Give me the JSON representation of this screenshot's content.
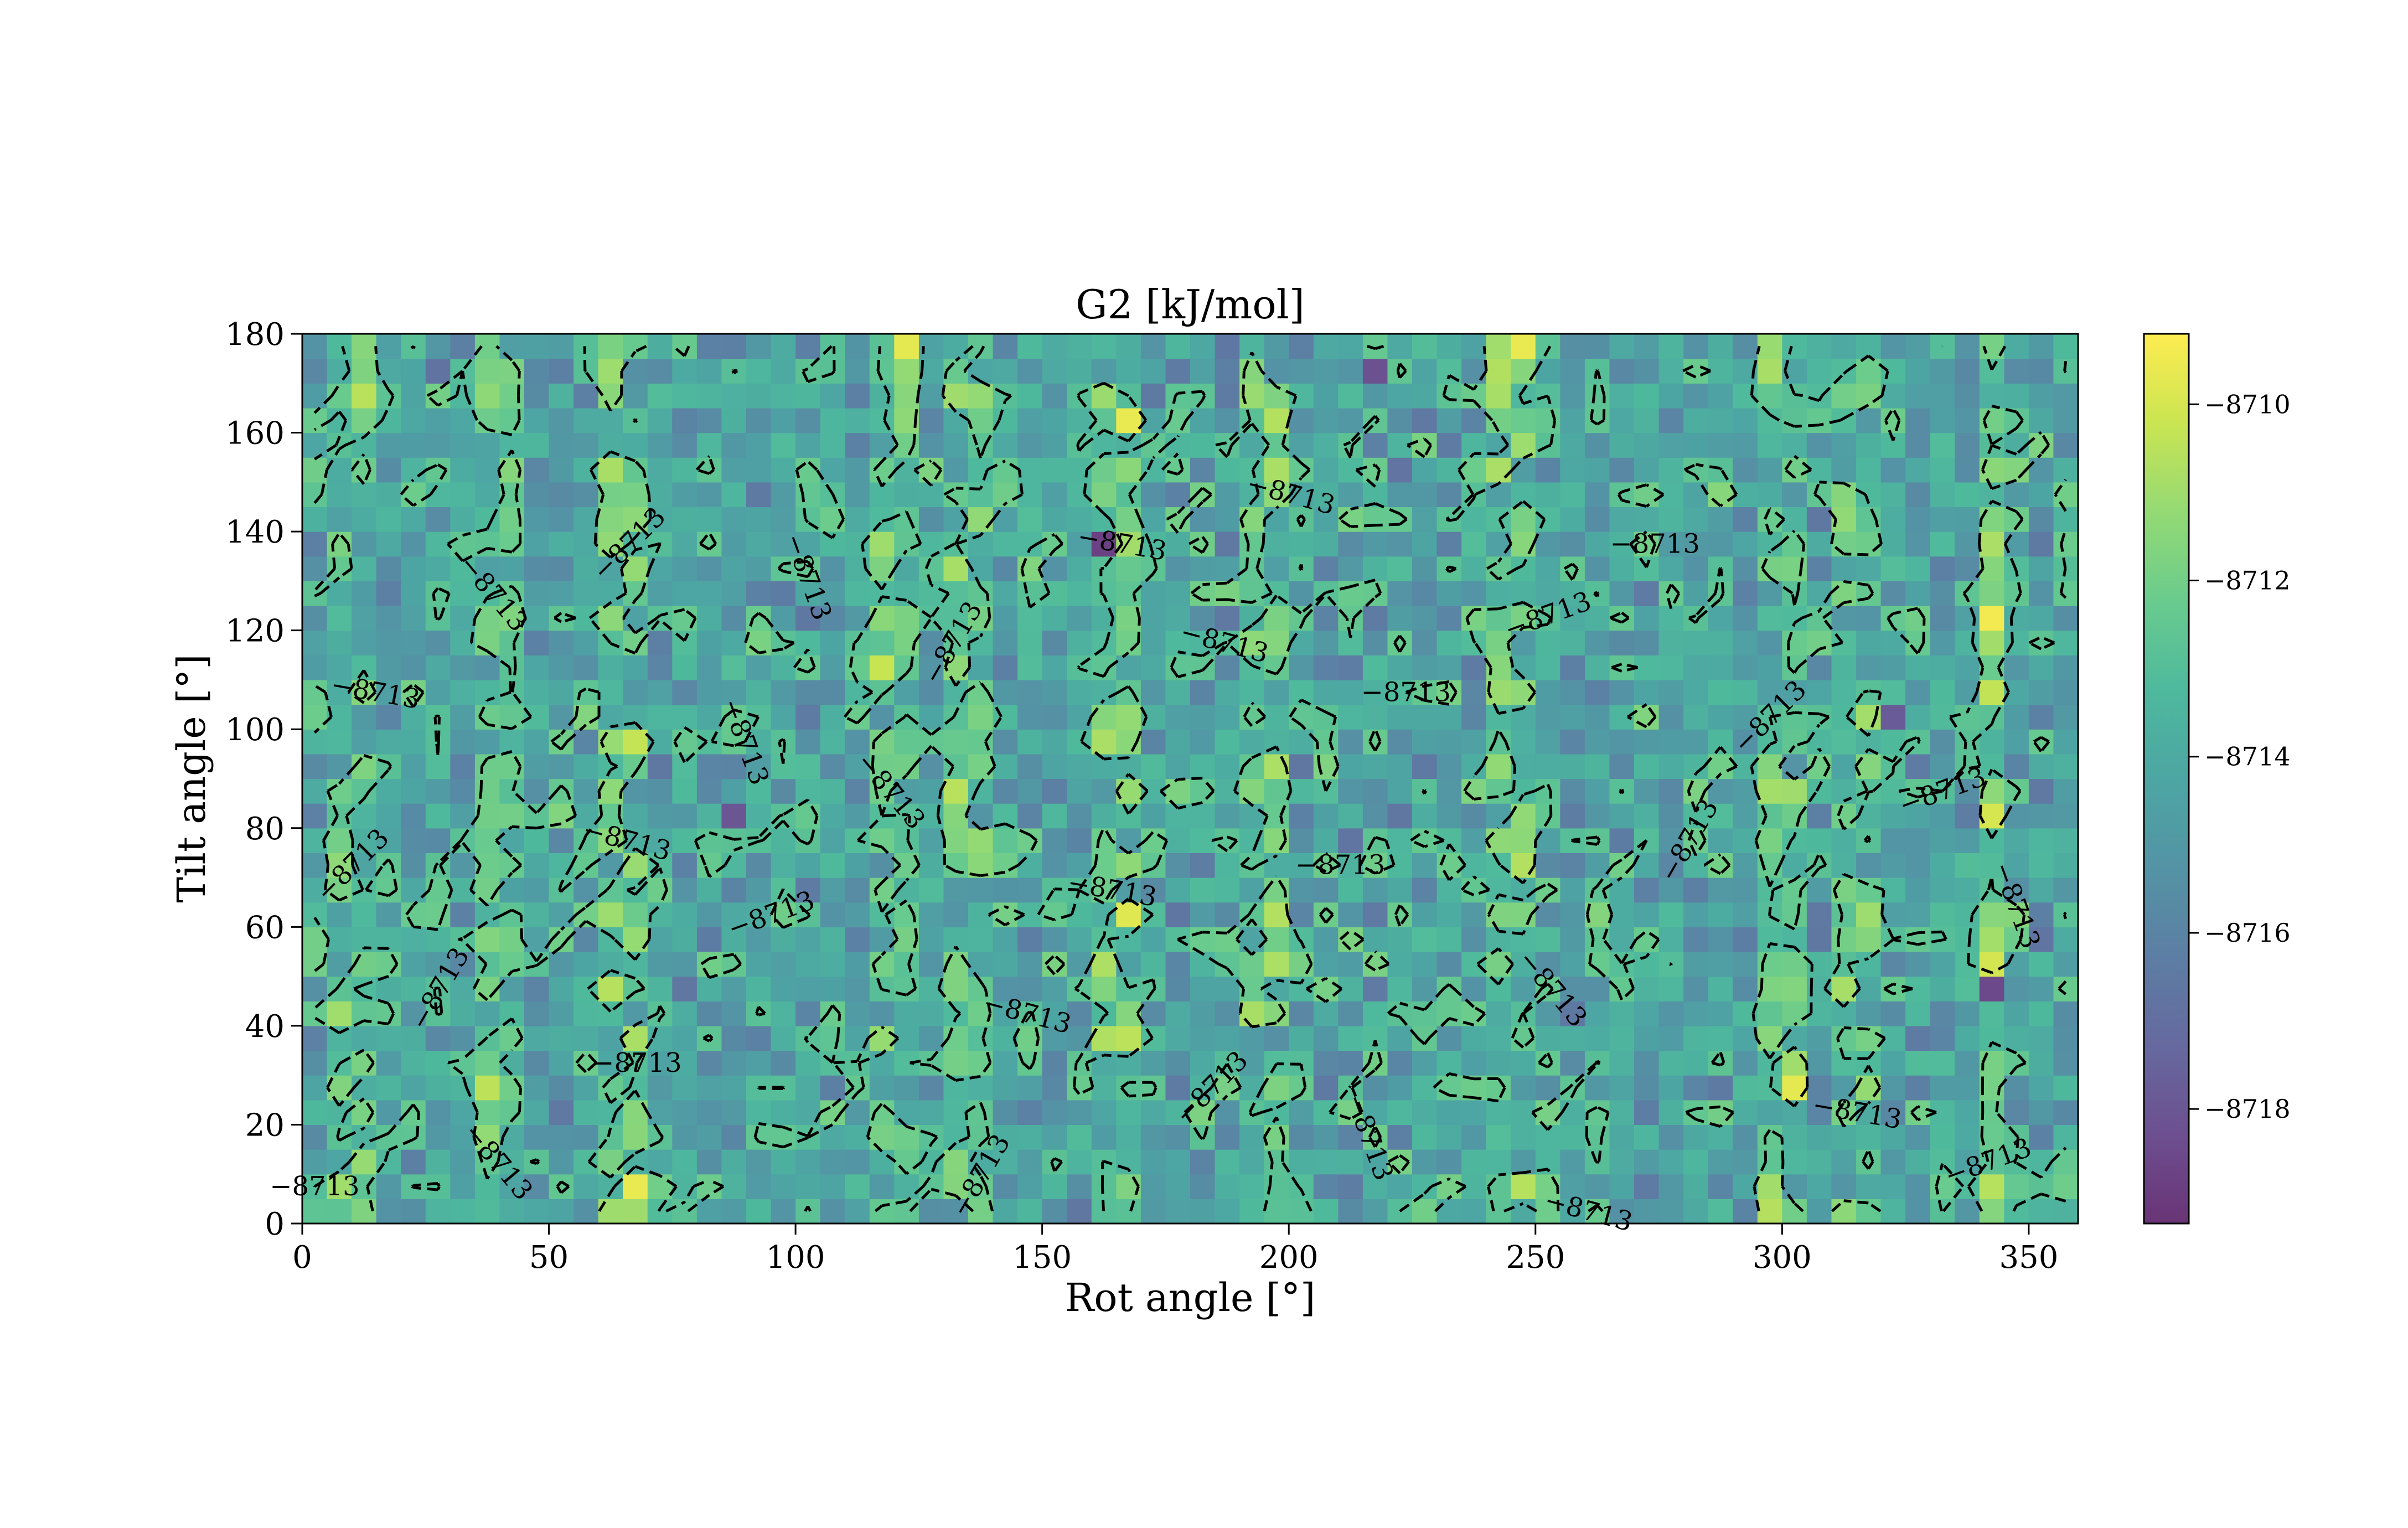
{
  "chart_data": {
    "type": "heatmap",
    "title": "G2 [kJ/mol]",
    "xlabel": "Rot angle [°]",
    "ylabel": "Tilt angle [°]",
    "xlim": [
      0,
      360
    ],
    "ylim": [
      0,
      180
    ],
    "xticks": [
      "0",
      "50",
      "100",
      "150",
      "200",
      "250",
      "300",
      "350"
    ],
    "yticks": [
      "0",
      "20",
      "40",
      "60",
      "80",
      "100",
      "120",
      "140",
      "160",
      "180"
    ],
    "grid_step_deg": 5,
    "colormap": "viridis",
    "colormap_alpha": 0.8,
    "value_range": [
      -8719.3,
      -8709.2
    ],
    "colorbar_ticks": [
      "−8710",
      "−8712",
      "−8714",
      "−8716",
      "−8718"
    ],
    "colorbar_tick_values": [
      -8710,
      -8712,
      -8714,
      -8716,
      -8718
    ],
    "contour": {
      "level": -8713,
      "label": "−8713",
      "style": "dashed",
      "color": "#000000"
    },
    "hot_columns_deg": [
      10,
      40,
      65,
      120,
      135,
      165,
      195,
      245,
      300,
      315,
      343
    ],
    "hot_cells": [
      {
        "x": 165,
        "y": 160,
        "value": -8709.6
      },
      {
        "x": 343,
        "y": 120,
        "value": -8709.4
      },
      {
        "x": 65,
        "y": 5,
        "value": -8709.6
      },
      {
        "x": 120,
        "y": 175,
        "value": -8709.7
      },
      {
        "x": 245,
        "y": 175,
        "value": -8709.6
      },
      {
        "x": 300,
        "y": 25,
        "value": -8709.7
      },
      {
        "x": 165,
        "y": 60,
        "value": -8709.8
      }
    ],
    "cold_cells": [
      {
        "x": 160,
        "y": 135,
        "value": -8718.8
      },
      {
        "x": 340,
        "y": 45,
        "value": -8718.5
      },
      {
        "x": 215,
        "y": 170,
        "value": -8718.2
      },
      {
        "x": 85,
        "y": 80,
        "value": -8718.0
      },
      {
        "x": 320,
        "y": 100,
        "value": -8717.8
      }
    ]
  }
}
